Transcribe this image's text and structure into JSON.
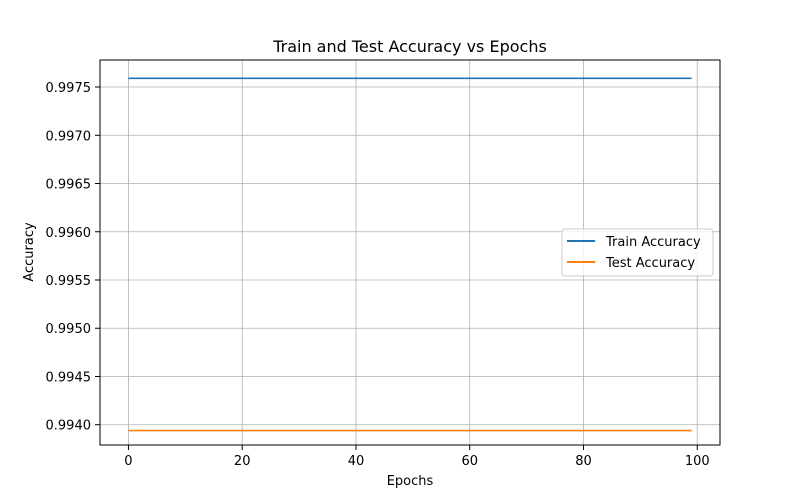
{
  "chart_data": {
    "type": "line",
    "title": "Train and Test Accuracy vs Epochs",
    "xlabel": "Epochs",
    "ylabel": "Accuracy",
    "xlim": [
      -5,
      104
    ],
    "ylim": [
      0.99379,
      0.99778
    ],
    "grid": true,
    "legend_position": "center-right",
    "xticks": [
      0,
      20,
      40,
      60,
      80,
      100
    ],
    "xtick_labels": [
      "0",
      "20",
      "40",
      "60",
      "80",
      "100"
    ],
    "yticks": [
      0.994,
      0.9945,
      0.995,
      0.9955,
      0.996,
      0.9965,
      0.997,
      0.9975
    ],
    "ytick_labels": [
      "0.9940",
      "0.9945",
      "0.9950",
      "0.9955",
      "0.9960",
      "0.9965",
      "0.9970",
      "0.9975"
    ],
    "x": [
      0,
      99
    ],
    "series": [
      {
        "name": "Train Accuracy",
        "color": "#1f77b4",
        "values": [
          0.99759,
          0.99759
        ]
      },
      {
        "name": "Test Accuracy",
        "color": "#ff7f0e",
        "values": [
          0.99394,
          0.99394
        ]
      }
    ]
  }
}
